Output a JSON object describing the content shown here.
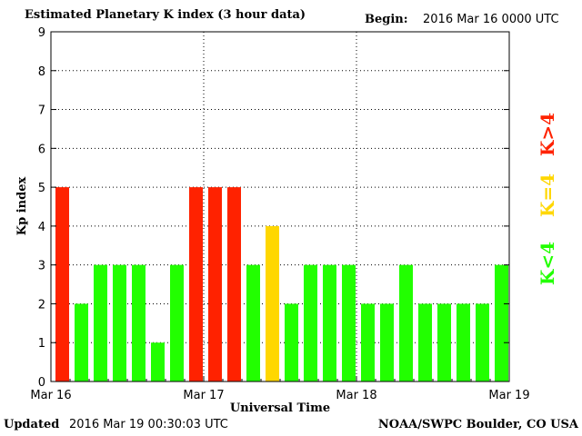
{
  "header": {
    "title": "Estimated Planetary K index (3 hour data)",
    "begin_label": "Begin:",
    "begin_value": "2016 Mar 16 0000 UTC"
  },
  "footer": {
    "updated_label": "Updated",
    "updated_value": "2016 Mar 19 00:30:03 UTC",
    "credit": "NOAA/SWPC Boulder, CO USA"
  },
  "colors": {
    "below4": "#22ff00",
    "eq4": "#ffd700",
    "above4": "#ff2200"
  },
  "legend": [
    "K<4",
    "K=4",
    "K>4"
  ],
  "chart_data": {
    "type": "bar",
    "title": "Estimated Planetary K index (3 hour data)",
    "xlabel": "Universal Time",
    "ylabel": "Kp index",
    "ylim": [
      0,
      9
    ],
    "yticks": [
      0,
      1,
      2,
      3,
      4,
      5,
      6,
      7,
      8,
      9
    ],
    "xticks": [
      "Mar 16",
      "Mar 17",
      "Mar 18",
      "Mar 19"
    ],
    "grid": true,
    "values": [
      5,
      2,
      3,
      3,
      3,
      1,
      3,
      5,
      5,
      5,
      3,
      4,
      2,
      3,
      3,
      3,
      2,
      2,
      3,
      2,
      2,
      2,
      2,
      3
    ]
  }
}
